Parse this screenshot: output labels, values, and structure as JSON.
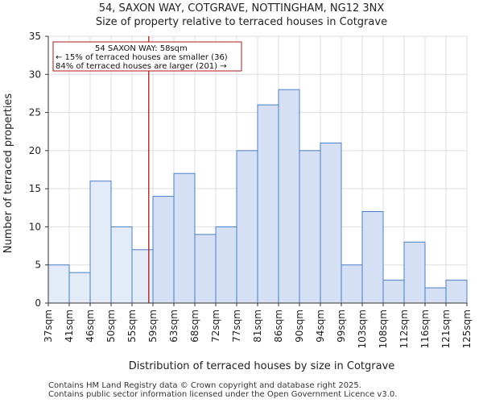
{
  "header": {
    "title": "54, SAXON WAY, COTGRAVE, NOTTINGHAM, NG12 3NX",
    "subtitle": "Size of property relative to terraced houses in Cotgrave"
  },
  "footer": {
    "line1": "Contains HM Land Registry data © Crown copyright and database right 2025.",
    "line2": "Contains public sector information licensed under the Open Government Licence v3.0."
  },
  "chart_data": {
    "type": "bar",
    "title": "54, SAXON WAY, COTGRAVE, NOTTINGHAM, NG12 3NX",
    "subtitle": "Size of property relative to terraced houses in Cotgrave",
    "xlabel": "Distribution of terraced houses by size in Cotgrave",
    "ylabel": "Number of terraced properties",
    "ylim": [
      0,
      35
    ],
    "yticks": [
      0,
      5,
      10,
      15,
      20,
      25,
      30,
      35
    ],
    "grid": true,
    "bin_edges": [
      "37sqm",
      "41sqm",
      "46sqm",
      "50sqm",
      "55sqm",
      "59sqm",
      "63sqm",
      "68sqm",
      "72sqm",
      "77sqm",
      "81sqm",
      "86sqm",
      "90sqm",
      "94sqm",
      "99sqm",
      "103sqm",
      "108sqm",
      "112sqm",
      "116sqm",
      "121sqm",
      "125sqm"
    ],
    "values": [
      5,
      4,
      16,
      10,
      7,
      14,
      17,
      9,
      10,
      20,
      26,
      28,
      20,
      21,
      5,
      12,
      3,
      8,
      2,
      3
    ],
    "highlight_bins": [
      0,
      1,
      2,
      3,
      4
    ],
    "colors": {
      "bar_fill": "#d6e0f5",
      "bar_fill_highlight": "#e3eaf8",
      "bar_stroke": "#4a7ec9",
      "marker": "#aa1a1a",
      "grid": "#dedede"
    },
    "marker": {
      "value": 58,
      "bin_position": 4.8
    },
    "annotation": {
      "lines": [
        "54 SAXON WAY: 58sqm",
        "← 15% of terraced houses are smaller (36)",
        "84% of terraced houses are larger (201) →"
      ]
    }
  }
}
